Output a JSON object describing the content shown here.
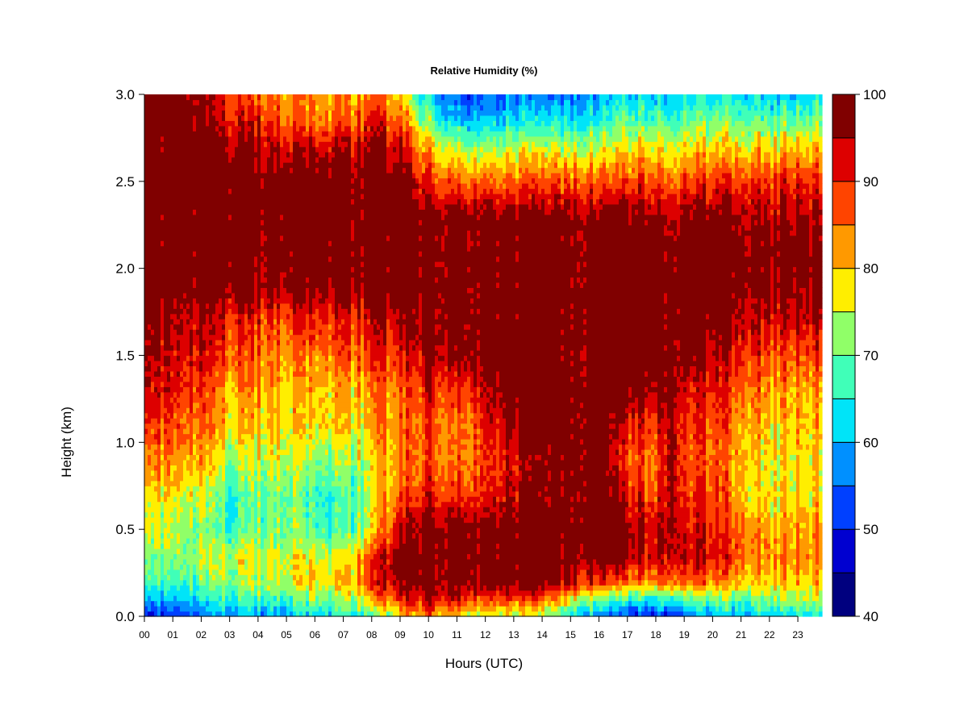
{
  "chart_data": {
    "type": "heatmap",
    "title": "Relative Humidity (%)",
    "xlabel": "Hours (UTC)",
    "ylabel": "Height (km)",
    "x_ticks": [
      "00",
      "01",
      "02",
      "03",
      "04",
      "05",
      "06",
      "07",
      "08",
      "09",
      "10",
      "11",
      "12",
      "13",
      "14",
      "15",
      "16",
      "17",
      "18",
      "19",
      "20",
      "21",
      "22",
      "23"
    ],
    "xlim": [
      0,
      23.85
    ],
    "y_ticks": [
      "0.0",
      "0.5",
      "1.0",
      "1.5",
      "2.0",
      "2.5",
      "3.0"
    ],
    "ylim": [
      0,
      3.0
    ],
    "colorbar": {
      "ticks": [
        "40",
        "50",
        "60",
        "70",
        "80",
        "90",
        "100"
      ],
      "range": [
        40,
        100
      ],
      "levels": [
        40,
        45,
        50,
        55,
        60,
        65,
        70,
        75,
        80,
        85,
        90,
        95,
        100
      ],
      "colors": [
        "#00007f",
        "#0000d0",
        "#0040ff",
        "#0090ff",
        "#00e4f8",
        "#40ffb8",
        "#90ff68",
        "#ffee00",
        "#ff9900",
        "#ff4400",
        "#dd0000",
        "#800000"
      ]
    },
    "profile_heights_km": [
      0.0,
      0.1,
      0.2,
      0.35,
      0.5,
      0.7,
      0.9,
      1.1,
      1.3,
      1.5,
      1.7,
      1.9,
      2.1,
      2.3,
      2.5,
      2.7,
      2.85,
      3.0
    ],
    "profiles": [
      {
        "hour": 0.0,
        "rh": [
          48,
          58,
          66,
          70,
          74,
          76,
          82,
          88,
          92,
          94,
          96,
          100,
          100,
          100,
          100,
          100,
          100,
          100
        ]
      },
      {
        "hour": 1.0,
        "rh": [
          50,
          60,
          68,
          72,
          74,
          78,
          84,
          88,
          92,
          94,
          96,
          100,
          100,
          100,
          100,
          100,
          100,
          98
        ]
      },
      {
        "hour": 2.0,
        "rh": [
          54,
          64,
          70,
          74,
          72,
          76,
          82,
          86,
          90,
          92,
          96,
          98,
          100,
          100,
          100,
          100,
          98,
          96
        ]
      },
      {
        "hour": 3.0,
        "rh": [
          58,
          66,
          72,
          74,
          66,
          64,
          72,
          78,
          80,
          86,
          90,
          98,
          100,
          100,
          100,
          96,
          90,
          88
        ]
      },
      {
        "hour": 4.0,
        "rh": [
          58,
          68,
          74,
          76,
          70,
          70,
          76,
          80,
          84,
          86,
          90,
          98,
          100,
          100,
          100,
          96,
          92,
          86
        ]
      },
      {
        "hour": 5.0,
        "rh": [
          60,
          68,
          76,
          76,
          72,
          72,
          76,
          80,
          80,
          84,
          88,
          98,
          100,
          100,
          100,
          94,
          86,
          84
        ]
      },
      {
        "hour": 6.0,
        "rh": [
          62,
          72,
          78,
          76,
          68,
          66,
          72,
          78,
          80,
          84,
          90,
          98,
          100,
          100,
          100,
          94,
          84,
          82
        ]
      },
      {
        "hour": 7.0,
        "rh": [
          64,
          72,
          78,
          76,
          66,
          66,
          72,
          78,
          80,
          86,
          90,
          98,
          100,
          100,
          100,
          94,
          86,
          82
        ]
      },
      {
        "hour": 8.0,
        "rh": [
          66,
          80,
          88,
          86,
          76,
          74,
          76,
          80,
          82,
          88,
          92,
          100,
          100,
          100,
          100,
          96,
          90,
          84
        ]
      },
      {
        "hour": 9.0,
        "rh": [
          78,
          90,
          98,
          100,
          94,
          86,
          84,
          84,
          86,
          90,
          96,
          100,
          100,
          100,
          100,
          94,
          86,
          80
        ]
      },
      {
        "hour": 10.0,
        "rh": [
          84,
          94,
          100,
          100,
          100,
          92,
          88,
          88,
          92,
          98,
          100,
          100,
          100,
          100,
          90,
          80,
          70,
          60
        ]
      },
      {
        "hour": 11.0,
        "rh": [
          80,
          94,
          100,
          100,
          100,
          90,
          86,
          86,
          90,
          98,
          100,
          100,
          100,
          100,
          88,
          76,
          62,
          56
        ]
      },
      {
        "hour": 12.0,
        "rh": [
          76,
          90,
          100,
          100,
          100,
          92,
          90,
          92,
          96,
          100,
          100,
          100,
          100,
          100,
          88,
          74,
          62,
          54
        ]
      },
      {
        "hour": 13.0,
        "rh": [
          74,
          88,
          100,
          100,
          100,
          94,
          92,
          96,
          100,
          100,
          100,
          100,
          100,
          98,
          86,
          74,
          62,
          56
        ]
      },
      {
        "hour": 14.0,
        "rh": [
          70,
          86,
          98,
          100,
          100,
          96,
          96,
          100,
          100,
          100,
          100,
          100,
          100,
          98,
          86,
          74,
          62,
          54
        ]
      },
      {
        "hour": 15.0,
        "rh": [
          64,
          78,
          94,
          100,
          100,
          100,
          100,
          100,
          100,
          100,
          100,
          100,
          100,
          98,
          88,
          74,
          64,
          56
        ]
      },
      {
        "hour": 16.0,
        "rh": [
          56,
          72,
          90,
          100,
          100,
          100,
          100,
          100,
          100,
          100,
          100,
          100,
          100,
          98,
          86,
          76,
          64,
          58
        ]
      },
      {
        "hour": 16.5,
        "rh": [
          52,
          66,
          86,
          98,
          100,
          96,
          92,
          94,
          100,
          100,
          100,
          100,
          100,
          98,
          86,
          74,
          66,
          60
        ]
      },
      {
        "hour": 17.0,
        "rh": [
          50,
          64,
          84,
          96,
          96,
          90,
          86,
          90,
          98,
          100,
          100,
          100,
          100,
          98,
          86,
          76,
          68,
          60
        ]
      },
      {
        "hour": 17.5,
        "rh": [
          50,
          64,
          84,
          94,
          94,
          90,
          86,
          90,
          98,
          100,
          100,
          100,
          100,
          98,
          88,
          78,
          68,
          62
        ]
      },
      {
        "hour": 18.0,
        "rh": [
          52,
          66,
          86,
          94,
          94,
          88,
          86,
          90,
          98,
          100,
          100,
          100,
          100,
          98,
          88,
          78,
          70,
          62
        ]
      },
      {
        "hour": 18.6,
        "rh": [
          54,
          68,
          90,
          98,
          100,
          100,
          100,
          100,
          100,
          100,
          100,
          100,
          100,
          98,
          88,
          78,
          70,
          62
        ]
      },
      {
        "hour": 19.0,
        "rh": [
          56,
          68,
          86,
          94,
          92,
          88,
          86,
          88,
          92,
          98,
          100,
          100,
          100,
          98,
          88,
          78,
          70,
          62
        ]
      },
      {
        "hour": 20.0,
        "rh": [
          58,
          70,
          84,
          92,
          90,
          88,
          86,
          88,
          90,
          94,
          98,
          100,
          100,
          98,
          88,
          78,
          70,
          62
        ]
      },
      {
        "hour": 21.0,
        "rh": [
          60,
          72,
          82,
          88,
          86,
          82,
          82,
          84,
          88,
          92,
          96,
          100,
          100,
          98,
          90,
          80,
          72,
          64
        ]
      },
      {
        "hour": 22.0,
        "rh": [
          62,
          72,
          80,
          84,
          82,
          78,
          78,
          80,
          84,
          88,
          94,
          98,
          100,
          96,
          90,
          80,
          70,
          62
        ]
      },
      {
        "hour": 23.0,
        "rh": [
          64,
          74,
          80,
          84,
          82,
          78,
          78,
          80,
          82,
          88,
          94,
          98,
          100,
          96,
          90,
          80,
          70,
          62
        ]
      },
      {
        "hour": 23.85,
        "rh": [
          66,
          76,
          82,
          86,
          84,
          80,
          80,
          82,
          84,
          90,
          96,
          100,
          100,
          98,
          92,
          82,
          72,
          64
        ]
      }
    ]
  }
}
